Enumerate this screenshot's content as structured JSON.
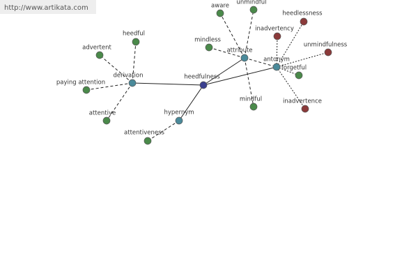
{
  "header": {
    "url": "http://www.artikata.com"
  },
  "nodes": [
    {
      "label": "heedfulness"
    },
    {
      "label": "derivation"
    },
    {
      "label": "attribute"
    },
    {
      "label": "antonym"
    },
    {
      "label": "hypernym"
    },
    {
      "label": "heedful"
    },
    {
      "label": "advertent"
    },
    {
      "label": "paying attention"
    },
    {
      "label": "attentive"
    },
    {
      "label": "attentiveness"
    },
    {
      "label": "mindless"
    },
    {
      "label": "aware"
    },
    {
      "label": "unmindful"
    },
    {
      "label": "mindful"
    },
    {
      "label": "forgetful"
    },
    {
      "label": "inadvertency"
    },
    {
      "label": "heedlessness"
    },
    {
      "label": "unmindfulness"
    },
    {
      "label": "inadvertence"
    }
  ]
}
